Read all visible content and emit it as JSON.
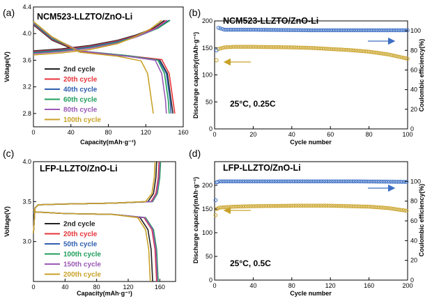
{
  "chart_data": [
    {
      "panel": "(a)",
      "type": "line",
      "title": "NCM523-LLZTO/ZnO-Li",
      "xlabel": "Capacity(mAh·g⁻¹)",
      "ylabel": "Voltage(V)",
      "xlim": [
        0,
        160
      ],
      "ylim": [
        2.6,
        4.4
      ],
      "xticks": [
        "0",
        "40",
        "80",
        "120",
        "160"
      ],
      "yticks": [
        "2.8",
        "3.2",
        "3.6",
        "4.0",
        "4.4"
      ],
      "legend": "bottom-left",
      "series": [
        {
          "name": "2nd cycle",
          "color": "#222222",
          "charge": [
            [
              0,
              3.74
            ],
            [
              30,
              3.77
            ],
            [
              60,
              3.82
            ],
            [
              90,
              3.9
            ],
            [
              110,
              3.98
            ],
            [
              128,
              4.08
            ],
            [
              140,
              4.2
            ]
          ],
          "discharge": [
            [
              0,
              4.13
            ],
            [
              20,
              3.9
            ],
            [
              50,
              3.72
            ],
            [
              100,
              3.66
            ],
            [
              135,
              3.6
            ],
            [
              143,
              3.4
            ],
            [
              147,
              3.0
            ],
            [
              149,
              2.8
            ]
          ]
        },
        {
          "name": "20th cycle",
          "color": "#e8333a",
          "charge": [
            [
              0,
              3.73
            ],
            [
              30,
              3.76
            ],
            [
              60,
              3.81
            ],
            [
              90,
              3.89
            ],
            [
              110,
              3.97
            ],
            [
              130,
              4.08
            ],
            [
              142,
              4.2
            ]
          ],
          "discharge": [
            [
              0,
              4.14
            ],
            [
              20,
              3.91
            ],
            [
              50,
              3.73
            ],
            [
              100,
              3.67
            ],
            [
              137,
              3.61
            ],
            [
              145,
              3.4
            ],
            [
              149,
              3.0
            ],
            [
              151,
              2.8
            ]
          ]
        },
        {
          "name": "40th cycle",
          "color": "#2e5fb0",
          "charge": [
            [
              0,
              3.72
            ],
            [
              30,
              3.75
            ],
            [
              60,
              3.8
            ],
            [
              90,
              3.88
            ],
            [
              112,
              3.97
            ],
            [
              132,
              4.08
            ],
            [
              145,
              4.2
            ]
          ],
          "discharge": [
            [
              0,
              4.15
            ],
            [
              20,
              3.92
            ],
            [
              50,
              3.74
            ],
            [
              100,
              3.67
            ],
            [
              134,
              3.6
            ],
            [
              142,
              3.4
            ],
            [
              146,
              3.0
            ],
            [
              147,
              2.8
            ]
          ]
        },
        {
          "name": "60th cycle",
          "color": "#1f9e5a",
          "charge": [
            [
              0,
              3.71
            ],
            [
              30,
              3.74
            ],
            [
              60,
              3.79
            ],
            [
              90,
              3.87
            ],
            [
              112,
              3.96
            ],
            [
              133,
              4.08
            ],
            [
              146,
              4.2
            ]
          ],
          "discharge": [
            [
              0,
              4.16
            ],
            [
              20,
              3.93
            ],
            [
              50,
              3.74
            ],
            [
              100,
              3.67
            ],
            [
              133,
              3.6
            ],
            [
              140,
              3.4
            ],
            [
              144,
              3.0
            ],
            [
              145,
              2.8
            ]
          ]
        },
        {
          "name": "80th cycle",
          "color": "#9b59b6",
          "charge": [
            [
              0,
              3.7
            ],
            [
              30,
              3.73
            ],
            [
              60,
              3.78
            ],
            [
              90,
              3.86
            ],
            [
              110,
              3.95
            ],
            [
              130,
              4.07
            ],
            [
              143,
              4.2
            ]
          ],
          "discharge": [
            [
              0,
              4.17
            ],
            [
              20,
              3.94
            ],
            [
              50,
              3.74
            ],
            [
              100,
              3.66
            ],
            [
              130,
              3.6
            ],
            [
              137,
              3.4
            ],
            [
              141,
              3.0
            ],
            [
              142,
              2.8
            ]
          ]
        },
        {
          "name": "100th cycle",
          "color": "#c9a227",
          "charge": [
            [
              0,
              3.68
            ],
            [
              30,
              3.71
            ],
            [
              60,
              3.76
            ],
            [
              90,
              3.85
            ],
            [
              108,
              3.95
            ],
            [
              125,
              4.07
            ],
            [
              137,
              4.2
            ]
          ],
          "discharge": [
            [
              0,
              4.18
            ],
            [
              20,
              3.95
            ],
            [
              50,
              3.72
            ],
            [
              90,
              3.66
            ],
            [
              115,
              3.59
            ],
            [
              122,
              3.4
            ],
            [
              126,
              3.0
            ],
            [
              128,
              2.8
            ]
          ]
        }
      ]
    },
    {
      "panel": "(b)",
      "type": "scatter",
      "title": "NCM523-LLZTO/ZnO-Li",
      "annotation": "25°C,   0.25C",
      "xlabel": "Cycle number",
      "ylabel": "Discharge capacity(mAh·g⁻¹)",
      "y2label": "Coulombic efficiency(%)",
      "xlim": [
        0,
        100
      ],
      "ylim": [
        0,
        200
      ],
      "y2lim": [
        0,
        110
      ],
      "xticks": [
        "0",
        "20",
        "40",
        "60",
        "80",
        "100"
      ],
      "yticks": [
        "0",
        "50",
        "100",
        "150",
        "200"
      ],
      "y2ticks": [
        "0",
        "20",
        "40",
        "60",
        "80",
        "100"
      ],
      "series": [
        {
          "name": "capacity",
          "color": "#c9a227",
          "axis": "left",
          "points": [
            [
              1,
              127
            ],
            [
              2,
              148
            ],
            [
              5,
              151
            ],
            [
              10,
              152
            ],
            [
              20,
              152
            ],
            [
              40,
              151
            ],
            [
              50,
              150
            ],
            [
              60,
              148
            ],
            [
              70,
              146
            ],
            [
              80,
              143
            ],
            [
              90,
              138
            ],
            [
              100,
              130
            ]
          ]
        },
        {
          "name": "efficiency",
          "color": "#3d6fc4",
          "axis": "right",
          "points": [
            [
              1,
              80
            ],
            [
              2,
              103
            ],
            [
              5,
              101
            ],
            [
              20,
              101
            ],
            [
              50,
              100.5
            ],
            [
              80,
              100.5
            ],
            [
              100,
              100.5
            ]
          ]
        }
      ]
    },
    {
      "panel": "(c)",
      "type": "line",
      "title": "LFP-LLZTO/ZnO-Li",
      "xlabel": "Capacity(mAh·g⁻¹)",
      "ylabel": "Voltage(V)",
      "xlim": [
        0,
        180
      ],
      "ylim": [
        2.5,
        4.0
      ],
      "xticks": [
        "0",
        "40",
        "80",
        "120",
        "160"
      ],
      "yticks": [
        "3.0",
        "3.5",
        "4.0"
      ],
      "legend": "bottom-left",
      "series": [
        {
          "name": "2nd cycle",
          "color": "#222222",
          "charge": [
            [
              0,
              3.1
            ],
            [
              2,
              3.42
            ],
            [
              6,
              3.46
            ],
            [
              40,
              3.47
            ],
            [
              100,
              3.48
            ],
            [
              145,
              3.5
            ],
            [
              152,
              3.6
            ],
            [
              155,
              3.8
            ],
            [
              156,
              4.0
            ]
          ],
          "discharge": [
            [
              0,
              3.4
            ],
            [
              3,
              3.37
            ],
            [
              40,
              3.35
            ],
            [
              100,
              3.34
            ],
            [
              135,
              3.3
            ],
            [
              145,
              3.15
            ],
            [
              149,
              2.9
            ],
            [
              151,
              2.5
            ]
          ]
        },
        {
          "name": "20th cycle",
          "color": "#e8333a",
          "charge": [
            [
              0,
              3.1
            ],
            [
              2,
              3.42
            ],
            [
              6,
              3.46
            ],
            [
              40,
              3.47
            ],
            [
              100,
              3.48
            ],
            [
              149,
              3.5
            ],
            [
              155,
              3.6
            ],
            [
              158,
              3.8
            ],
            [
              159,
              4.0
            ]
          ],
          "discharge": [
            [
              0,
              3.4
            ],
            [
              3,
              3.37
            ],
            [
              40,
              3.35
            ],
            [
              100,
              3.34
            ],
            [
              140,
              3.3
            ],
            [
              150,
              3.15
            ],
            [
              154,
              2.9
            ],
            [
              156,
              2.5
            ]
          ]
        },
        {
          "name": "50th cycle",
          "color": "#2e5fb0",
          "charge": [
            [
              0,
              3.1
            ],
            [
              2,
              3.42
            ],
            [
              6,
              3.46
            ],
            [
              40,
              3.47
            ],
            [
              100,
              3.48
            ],
            [
              150,
              3.5
            ],
            [
              156,
              3.6
            ],
            [
              159,
              3.8
            ],
            [
              160,
              4.0
            ]
          ],
          "discharge": [
            [
              0,
              3.4
            ],
            [
              3,
              3.37
            ],
            [
              40,
              3.35
            ],
            [
              100,
              3.34
            ],
            [
              141,
              3.3
            ],
            [
              151,
              3.15
            ],
            [
              155,
              2.9
            ],
            [
              157,
              2.5
            ]
          ]
        },
        {
          "name": "100th cycle",
          "color": "#1f9e5a",
          "charge": [
            [
              0,
              3.1
            ],
            [
              2,
              3.42
            ],
            [
              6,
              3.46
            ],
            [
              40,
              3.47
            ],
            [
              100,
              3.48
            ],
            [
              151,
              3.5
            ],
            [
              157,
              3.6
            ],
            [
              160,
              3.8
            ],
            [
              161,
              4.0
            ]
          ],
          "discharge": [
            [
              0,
              3.4
            ],
            [
              3,
              3.37
            ],
            [
              40,
              3.35
            ],
            [
              100,
              3.34
            ],
            [
              142,
              3.3
            ],
            [
              152,
              3.15
            ],
            [
              156,
              2.9
            ],
            [
              158,
              2.5
            ]
          ]
        },
        {
          "name": "150th cycle",
          "color": "#9b59b6",
          "charge": [
            [
              0,
              3.1
            ],
            [
              2,
              3.42
            ],
            [
              6,
              3.46
            ],
            [
              40,
              3.47
            ],
            [
              100,
              3.48
            ],
            [
              150,
              3.5
            ],
            [
              156,
              3.6
            ],
            [
              159,
              3.8
            ],
            [
              160,
              4.0
            ]
          ],
          "discharge": [
            [
              0,
              3.4
            ],
            [
              3,
              3.37
            ],
            [
              40,
              3.35
            ],
            [
              100,
              3.34
            ],
            [
              141,
              3.3
            ],
            [
              151,
              3.15
            ],
            [
              155,
              2.9
            ],
            [
              157,
              2.5
            ]
          ]
        },
        {
          "name": "200th cycle",
          "color": "#c9a227",
          "charge": [
            [
              0,
              3.1
            ],
            [
              2,
              3.42
            ],
            [
              6,
              3.46
            ],
            [
              40,
              3.47
            ],
            [
              100,
              3.48
            ],
            [
              142,
              3.5
            ],
            [
              150,
              3.6
            ],
            [
              153,
              3.8
            ],
            [
              154,
              4.0
            ]
          ],
          "discharge": [
            [
              0,
              3.4
            ],
            [
              3,
              3.37
            ],
            [
              40,
              3.35
            ],
            [
              100,
              3.34
            ],
            [
              132,
              3.3
            ],
            [
              142,
              3.15
            ],
            [
              146,
              2.9
            ],
            [
              148,
              2.5
            ]
          ]
        }
      ]
    },
    {
      "panel": "(d)",
      "type": "scatter",
      "title": "LFP-LLZTO/ZnO-Li",
      "annotation": "25°C,   0.5C",
      "xlabel": "Cycle number",
      "ylabel": "Discharge capacity(mAh·g⁻¹)",
      "y2label": "Coulombic efficiency(%)",
      "xlim": [
        0,
        200
      ],
      "ylim": [
        0,
        250
      ],
      "y2lim": [
        0,
        120
      ],
      "xticks": [
        "0",
        "40",
        "80",
        "120",
        "160",
        "200"
      ],
      "yticks": [
        "0",
        "50",
        "100",
        "150",
        "200"
      ],
      "y2ticks": [
        "0",
        "20",
        "40",
        "60",
        "80",
        "100"
      ],
      "series": [
        {
          "name": "capacity",
          "color": "#c9a227",
          "axis": "left",
          "points": [
            [
              1,
              137
            ],
            [
              2,
              150
            ],
            [
              5,
              153
            ],
            [
              20,
              155
            ],
            [
              40,
              156
            ],
            [
              80,
              157
            ],
            [
              120,
              157
            ],
            [
              160,
              155
            ],
            [
              180,
              152
            ],
            [
              200,
              146
            ]
          ]
        },
        {
          "name": "efficiency",
          "color": "#3d6fc4",
          "axis": "right",
          "points": [
            [
              1,
              81
            ],
            [
              2,
              99
            ],
            [
              5,
              100
            ],
            [
              50,
              100
            ],
            [
              100,
              100
            ],
            [
              150,
              100
            ],
            [
              200,
              99.5
            ]
          ]
        }
      ]
    }
  ]
}
